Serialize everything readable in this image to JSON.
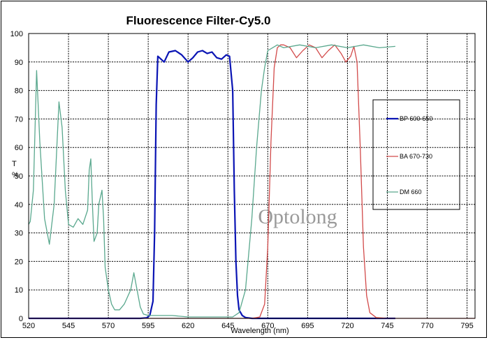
{
  "chart_data": {
    "type": "line",
    "title": "Fluorescence Filter-Cy5.0",
    "xlabel": "Wavelength (nm)",
    "ylabel_top": "T",
    "ylabel_bottom": "%",
    "xlim": [
      520,
      800
    ],
    "ylim": [
      0,
      100
    ],
    "xticks": [
      520,
      545,
      570,
      595,
      620,
      645,
      670,
      695,
      720,
      745,
      770,
      795
    ],
    "yticks": [
      0,
      10,
      20,
      30,
      40,
      50,
      60,
      70,
      80,
      90,
      100
    ],
    "grid": true,
    "legend_position": "right",
    "watermark": "Optolong",
    "series": [
      {
        "name": "BP 600-650",
        "color": "#0a14b4",
        "x": [
          520,
          590,
          594,
          596,
          598,
          599,
          600,
          601,
          603,
          605,
          608,
          612,
          616,
          620,
          623,
          626,
          629,
          632,
          635,
          638,
          641,
          644,
          646,
          648,
          649,
          650,
          651,
          652,
          654,
          656,
          660,
          670,
          750
        ],
        "values": [
          0,
          0,
          0.2,
          1,
          6,
          30,
          75,
          92,
          91,
          90,
          93.5,
          94,
          92.5,
          90,
          91.5,
          93.5,
          94,
          93,
          93.5,
          91.5,
          91,
          92.5,
          92,
          80,
          45,
          20,
          8,
          3,
          1,
          0.3,
          0,
          0,
          0
        ]
      },
      {
        "name": "BA 670-730",
        "color": "#d24a4a",
        "x": [
          520,
          660,
          665,
          668,
          670,
          672,
          674,
          676,
          678,
          680,
          684,
          688,
          692,
          696,
          700,
          704,
          708,
          712,
          716,
          719,
          722,
          724,
          726,
          728,
          730,
          732,
          734,
          738,
          745,
          800
        ],
        "values": [
          0,
          0,
          0.5,
          5,
          25,
          62,
          88,
          95,
          96,
          96,
          95,
          91.5,
          94,
          96,
          95,
          91.5,
          94,
          96,
          93,
          90,
          92,
          95.5,
          90,
          60,
          25,
          8,
          2,
          0.3,
          0,
          0
        ]
      },
      {
        "name": "DM 660",
        "color": "#5aa88e",
        "x": [
          520,
          521,
          523,
          525,
          527,
          530,
          533,
          536,
          539,
          541,
          543,
          545,
          548,
          551,
          554,
          557,
          558,
          559,
          560,
          561,
          563,
          564,
          566,
          567,
          568,
          570,
          572,
          574,
          577,
          580,
          584,
          586,
          588,
          590,
          592,
          595,
          600,
          610,
          620,
          630,
          640,
          648,
          652,
          656,
          660,
          663,
          666,
          668,
          670,
          673,
          676,
          680,
          690,
          700,
          710,
          720,
          730,
          740,
          750
        ],
        "values": [
          33,
          34,
          45,
          87,
          62,
          35,
          26,
          40,
          76,
          67,
          45,
          33,
          32,
          35,
          33,
          38,
          52,
          56,
          40,
          27,
          30,
          40,
          45,
          35,
          18,
          10,
          5,
          3,
          3,
          5,
          10,
          16,
          10,
          4,
          1.5,
          1,
          1,
          1,
          0.5,
          0.5,
          0.5,
          0.5,
          2,
          10,
          35,
          60,
          80,
          88,
          94,
          95,
          96,
          95,
          96,
          95,
          96,
          95,
          96,
          95,
          95.5
        ]
      }
    ]
  }
}
